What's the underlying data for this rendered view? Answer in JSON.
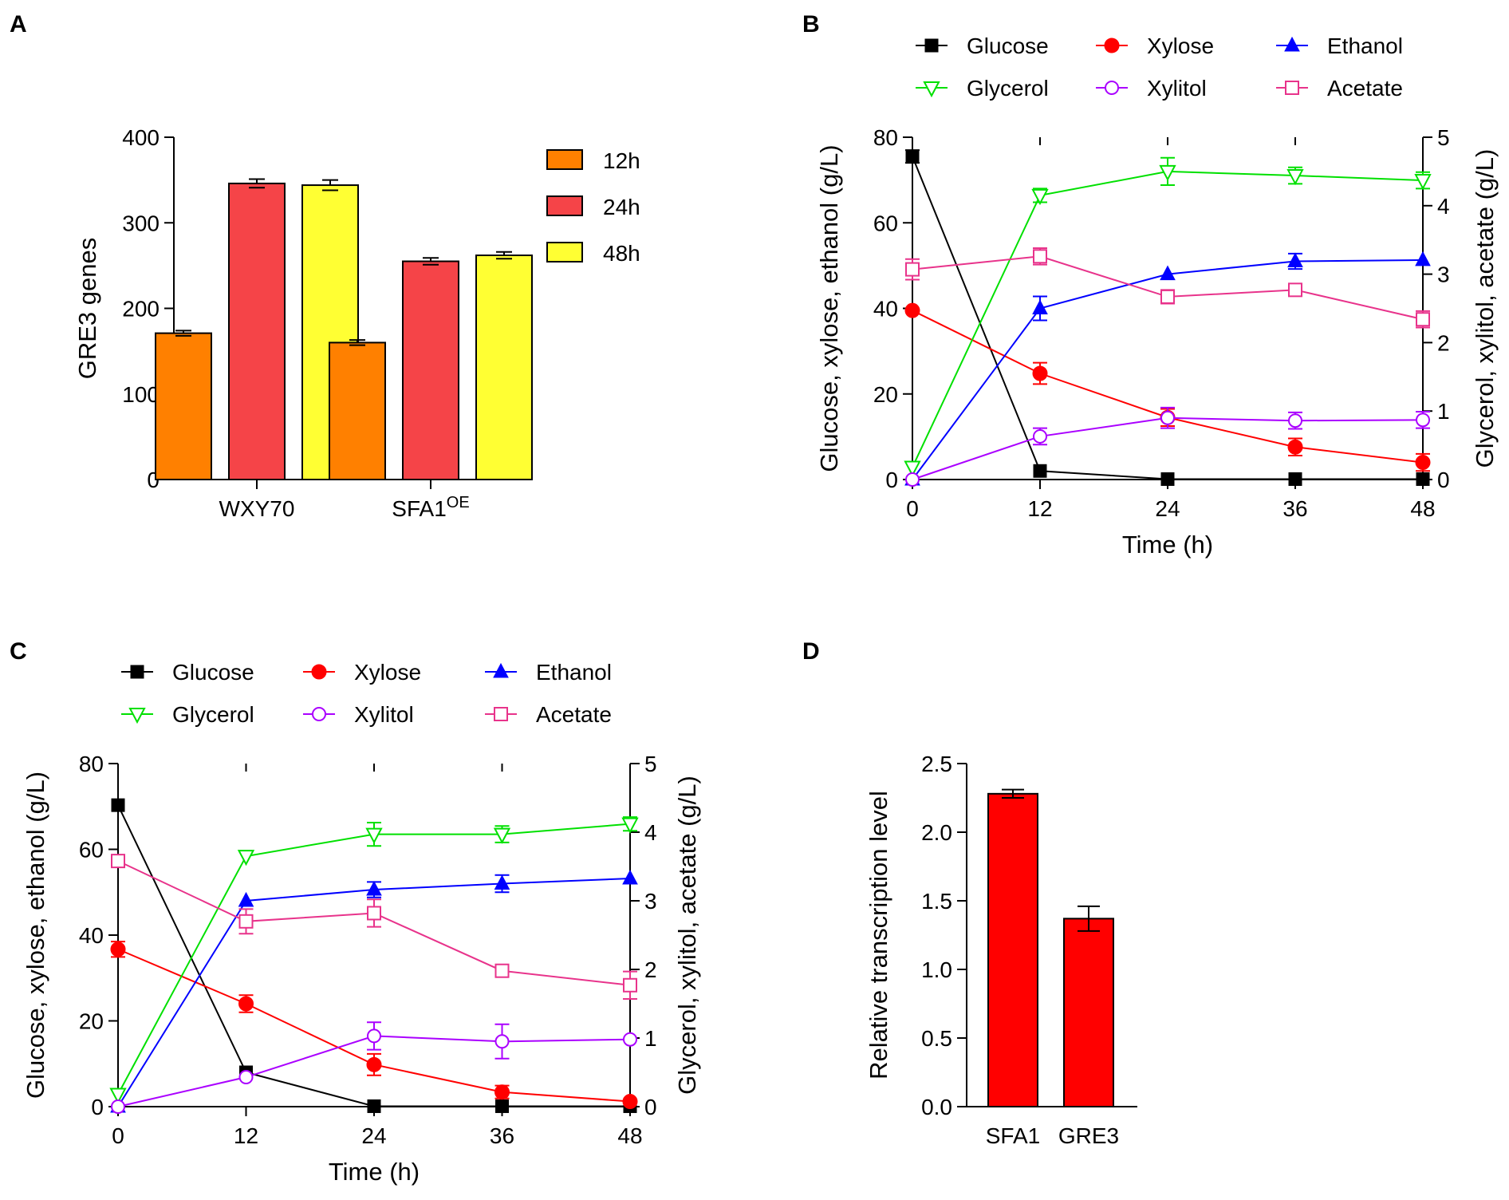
{
  "panels": [
    "A",
    "B",
    "C",
    "D"
  ],
  "chart_data": [
    {
      "id": "A",
      "type": "bar",
      "title": "",
      "xlabel": "",
      "ylabel": "GRE3 genes",
      "ylim": [
        0,
        400
      ],
      "yticks": [
        0,
        100,
        200,
        300,
        400
      ],
      "categories": [
        {
          "main": "WXY70",
          "sup": ""
        },
        {
          "main": "SFA1",
          "sup": "OE"
        }
      ],
      "series": [
        {
          "name": "12h",
          "color": "#FF8000",
          "values": [
            171,
            160
          ],
          "errors": [
            3,
            3
          ]
        },
        {
          "name": "24h",
          "color": "#F54448",
          "values": [
            346,
            255
          ],
          "errors": [
            5,
            4
          ]
        },
        {
          "name": "48h",
          "color": "#FFFF33",
          "values": [
            344,
            262
          ],
          "errors": [
            6,
            4
          ]
        }
      ],
      "legend_position": "right"
    },
    {
      "id": "B",
      "type": "line",
      "xlabel": "Time (h)",
      "ylabel": "Glucose, xylose, ethanol (g/L)",
      "ylabel_right": "Glycerol, xylitol, acetate (g/L)",
      "x": [
        0,
        12,
        24,
        36,
        48
      ],
      "xlim": [
        0,
        48
      ],
      "ylim": [
        0,
        80
      ],
      "ylim_right": [
        0,
        5
      ],
      "yticks": [
        0,
        20,
        40,
        60,
        80
      ],
      "yticks_right": [
        0,
        1,
        2,
        3,
        4,
        5
      ],
      "series": [
        {
          "name": "Glucose",
          "axis": "left",
          "marker": "square-filled",
          "color": "#000000",
          "values": [
            75.5,
            2.0,
            0.1,
            0.1,
            0.1
          ],
          "errors": [
            1.5,
            0,
            0,
            0,
            0
          ]
        },
        {
          "name": "Xylose",
          "axis": "left",
          "marker": "circle-filled",
          "color": "#FF0000",
          "values": [
            39.5,
            24.8,
            14.5,
            7.6,
            4.0
          ],
          "errors": [
            0,
            2.5,
            2.0,
            2.0,
            2.0
          ]
        },
        {
          "name": "Ethanol",
          "axis": "left",
          "marker": "triangle-filled",
          "color": "#0000FF",
          "values": [
            0,
            40.0,
            48.0,
            51.0,
            51.3
          ],
          "errors": [
            0,
            2.8,
            0,
            1.8,
            0
          ]
        },
        {
          "name": "Glycerol",
          "axis": "right",
          "marker": "triangle-down-open",
          "color": "#00E000",
          "values": [
            0.18,
            4.15,
            4.5,
            4.44,
            4.37
          ],
          "errors": [
            0,
            0.1,
            0.2,
            0.12,
            0.12
          ]
        },
        {
          "name": "Xylitol",
          "axis": "right",
          "marker": "circle-open",
          "color": "#AA00FF",
          "values": [
            0,
            0.63,
            0.9,
            0.86,
            0.87
          ],
          "errors": [
            0,
            0.12,
            0.15,
            0.12,
            0.12
          ]
        },
        {
          "name": "Acetate",
          "axis": "right",
          "marker": "square-open",
          "color": "#E8338B",
          "values": [
            3.07,
            3.26,
            2.67,
            2.77,
            2.34
          ],
          "errors": [
            0.15,
            0.12,
            0.1,
            0,
            0.12
          ]
        }
      ],
      "legend_position": "top"
    },
    {
      "id": "C",
      "type": "line",
      "xlabel": "Time (h)",
      "ylabel": "Glucose, xylose, ethanol (g/L)",
      "ylabel_right": "Glycerol, xylitol, acetate (g/L)",
      "x": [
        0,
        12,
        24,
        36,
        48
      ],
      "xlim": [
        0,
        48
      ],
      "ylim": [
        0,
        80
      ],
      "ylim_right": [
        0,
        5
      ],
      "yticks": [
        0,
        20,
        40,
        60,
        80
      ],
      "yticks_right": [
        0,
        1,
        2,
        3,
        4,
        5
      ],
      "series": [
        {
          "name": "Glucose",
          "axis": "left",
          "marker": "square-filled",
          "color": "#000000",
          "values": [
            70.3,
            8.0,
            0.1,
            0.1,
            0.1
          ],
          "errors": [
            0,
            0,
            0,
            0,
            0
          ]
        },
        {
          "name": "Xylose",
          "axis": "left",
          "marker": "circle-filled",
          "color": "#FF0000",
          "values": [
            36.7,
            24.0,
            9.8,
            3.4,
            1.2
          ],
          "errors": [
            1.8,
            2.0,
            2.5,
            1.5,
            0
          ]
        },
        {
          "name": "Ethanol",
          "axis": "left",
          "marker": "triangle-filled",
          "color": "#0000FF",
          "values": [
            0,
            48.0,
            50.6,
            52.0,
            53.2
          ],
          "errors": [
            0,
            0,
            1.8,
            2.0,
            0
          ]
        },
        {
          "name": "Glycerol",
          "axis": "right",
          "marker": "triangle-down-open",
          "color": "#00E000",
          "values": [
            0.18,
            3.65,
            3.97,
            3.97,
            4.12
          ],
          "errors": [
            0,
            0,
            0.17,
            0.12,
            0.1
          ]
        },
        {
          "name": "Xylitol",
          "axis": "right",
          "marker": "circle-open",
          "color": "#AA00FF",
          "values": [
            0,
            0.43,
            1.03,
            0.95,
            0.98
          ],
          "errors": [
            0,
            0,
            0.2,
            0.25,
            0
          ]
        },
        {
          "name": "Acetate",
          "axis": "right",
          "marker": "square-open",
          "color": "#E8338B",
          "values": [
            3.58,
            2.7,
            2.82,
            1.98,
            1.77
          ],
          "errors": [
            0,
            0.18,
            0.2,
            0,
            0.2
          ]
        }
      ],
      "legend_position": "top"
    },
    {
      "id": "D",
      "type": "bar",
      "xlabel": "",
      "ylabel": "Relative transcription level",
      "ylim": [
        0,
        2.5
      ],
      "yticks": [
        0.0,
        0.5,
        1.0,
        1.5,
        2.0,
        2.5
      ],
      "categories": [
        "SFA1",
        "GRE3"
      ],
      "values": [
        2.28,
        1.37
      ],
      "errors": [
        0.03,
        0.09
      ],
      "color": "#FF0000"
    }
  ]
}
